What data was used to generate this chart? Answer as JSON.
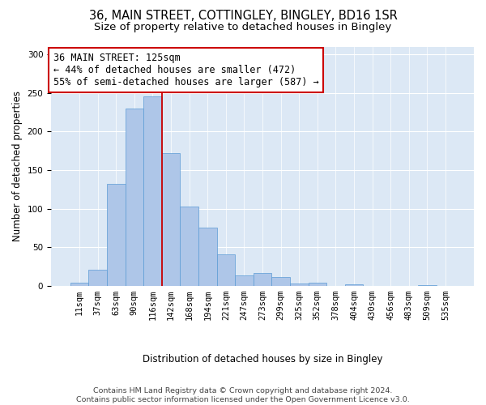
{
  "title": "36, MAIN STREET, COTTINGLEY, BINGLEY, BD16 1SR",
  "subtitle": "Size of property relative to detached houses in Bingley",
  "xlabel": "Distribution of detached houses by size in Bingley",
  "ylabel": "Number of detached properties",
  "categories": [
    "11sqm",
    "37sqm",
    "63sqm",
    "90sqm",
    "116sqm",
    "142sqm",
    "168sqm",
    "194sqm",
    "221sqm",
    "247sqm",
    "273sqm",
    "299sqm",
    "325sqm",
    "352sqm",
    "378sqm",
    "404sqm",
    "430sqm",
    "456sqm",
    "483sqm",
    "509sqm",
    "535sqm"
  ],
  "values": [
    4,
    21,
    132,
    230,
    246,
    172,
    103,
    76,
    41,
    14,
    17,
    11,
    3,
    4,
    0,
    2,
    0,
    0,
    0,
    1,
    0
  ],
  "bar_color": "#aec6e8",
  "bar_edge_color": "#5b9bd5",
  "bar_width": 1.0,
  "property_bin_index": 4,
  "annotation_line1": "36 MAIN STREET: 125sqm",
  "annotation_line2": "← 44% of detached houses are smaller (472)",
  "annotation_line3": "55% of semi-detached houses are larger (587) →",
  "annotation_box_color": "#ffffff",
  "annotation_box_edge_color": "#cc0000",
  "vline_color": "#cc0000",
  "ylim": [
    0,
    310
  ],
  "yticks": [
    0,
    50,
    100,
    150,
    200,
    250,
    300
  ],
  "background_color": "#dce8f5",
  "footer_line1": "Contains HM Land Registry data © Crown copyright and database right 2024.",
  "footer_line2": "Contains public sector information licensed under the Open Government Licence v3.0.",
  "title_fontsize": 10.5,
  "subtitle_fontsize": 9.5,
  "axis_label_fontsize": 8.5,
  "tick_fontsize": 7.5,
  "annotation_fontsize": 8.5,
  "footer_fontsize": 6.8
}
